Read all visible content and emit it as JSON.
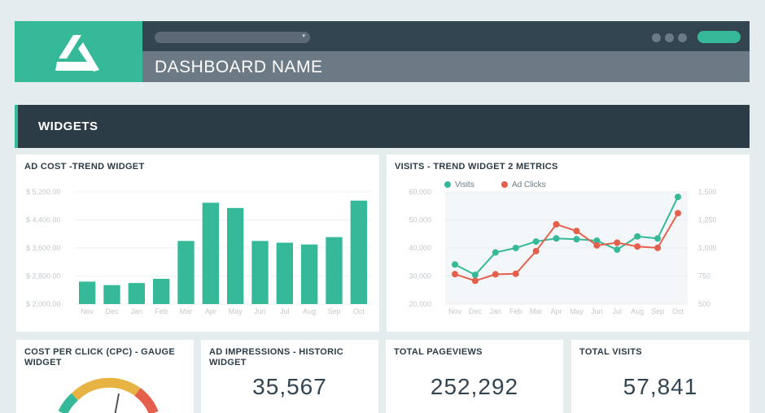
{
  "header": {
    "dashboard_name": "DASHBOARD NAME",
    "dropdown_caret": "▾"
  },
  "section": {
    "title": "WIDGETS"
  },
  "colors": {
    "accent": "#35b999",
    "red": "#e5604c",
    "yellow": "#e7b443",
    "dark": "#2c3c47"
  },
  "widgets": {
    "ad_cost": {
      "title": "AD COST -TREND WIDGET"
    },
    "visits": {
      "title": "VISITS - TREND WIDGET 2 METRICS"
    },
    "cpc": {
      "title": "COST PER CLICK (CPC) - GAUGE WIDGET"
    },
    "impressions": {
      "title": "AD IMPRESSIONS - HISTORIC WIDGET",
      "value": "35,567"
    },
    "pageviews": {
      "title": "TOTAL PAGEVIEWS",
      "value": "252,292"
    },
    "total_visits": {
      "title": "TOTAL VISITS",
      "value": "57,841"
    }
  },
  "chart_data": [
    {
      "type": "bar",
      "title": "AD COST -TREND WIDGET",
      "categories": [
        "Nov",
        "Dec",
        "Jan",
        "Feb",
        "Mar",
        "Apr",
        "May",
        "Jun",
        "Jul",
        "Aug",
        "Sep",
        "Oct"
      ],
      "values": [
        2640,
        2540,
        2600,
        2720,
        3800,
        4890,
        4740,
        3800,
        3750,
        3700,
        3910,
        4950
      ],
      "yticks": [
        "$ 2,000.00",
        "$ 2,800.00",
        "$ 3,600.00",
        "$ 4,400.00",
        "$ 5,200.00"
      ],
      "ylim": [
        2000,
        5200
      ],
      "grid": true
    },
    {
      "type": "line",
      "title": "VISITS - TREND WIDGET 2 METRICS",
      "categories": [
        "Nov",
        "Dec",
        "Jan",
        "Feb",
        "Mar",
        "Apr",
        "May",
        "Jun",
        "Jul",
        "Aug",
        "Sep",
        "Oct"
      ],
      "series": [
        {
          "name": "Visits",
          "axis": "left",
          "color": "#35b999",
          "values": [
            34100,
            30400,
            38400,
            40000,
            42300,
            43400,
            43100,
            42600,
            39400,
            44100,
            43400,
            58200
          ]
        },
        {
          "name": "Ad Clicks",
          "axis": "right",
          "color": "#e5604c",
          "values": [
            767,
            707,
            765,
            770,
            972,
            1211,
            1151,
            1023,
            1047,
            1013,
            1001,
            1310
          ]
        }
      ],
      "yticks_left": [
        "20,000",
        "30,000",
        "40,000",
        "50,000",
        "60,000"
      ],
      "yticks_right": [
        "500",
        "750",
        "1,000",
        "1,250",
        "1,500"
      ],
      "ylim_left": [
        20000,
        60000
      ],
      "ylim_right": [
        500,
        1500
      ],
      "legend": "top-left",
      "grid": true
    }
  ]
}
